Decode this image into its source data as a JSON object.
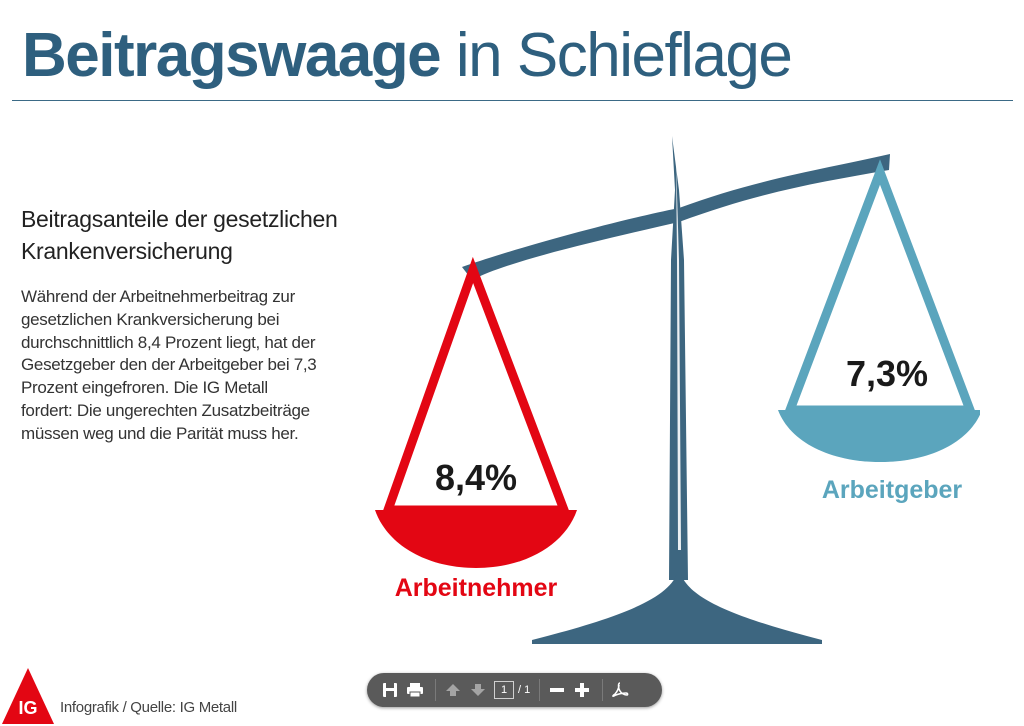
{
  "header": {
    "title_bold": "Beitragswaage",
    "title_rest": "in Schieflage"
  },
  "intro": {
    "subtitle": "Beitragsanteile der gesetzlichen Krankenversicherung",
    "body": "Während der Arbeitnehmerbeitrag zur gesetzlichen Krankversicherung bei durchschnittlich 8,4 Prozent liegt, hat der Gesetzgeber den der Arbeitgeber bei 7,3 Prozent eingefroren. Die IG Metall fordert: Die ungerechten Zusatzbeiträge müssen weg und die Parität muss her."
  },
  "chart_data": {
    "type": "scale",
    "series": [
      {
        "name": "Arbeitnehmer",
        "value": 8.4,
        "label": "8,4%",
        "color": "#e30613",
        "side": "left"
      },
      {
        "name": "Arbeitgeber",
        "value": 7.3,
        "label": "7,3%",
        "color": "#5ba5bd",
        "side": "right"
      }
    ],
    "unit": "%",
    "scale_color": "#3d6680"
  },
  "footer": {
    "source": "Infografik / Quelle: IG Metall",
    "logo_text": "IG"
  },
  "toolbar": {
    "icons": [
      "save-icon",
      "print-icon",
      "page-up-icon",
      "page-down-icon",
      "zoom-out-icon",
      "zoom-in-icon",
      "acrobat-icon"
    ],
    "page_current": "1",
    "page_separator": "/",
    "page_total": "1"
  }
}
